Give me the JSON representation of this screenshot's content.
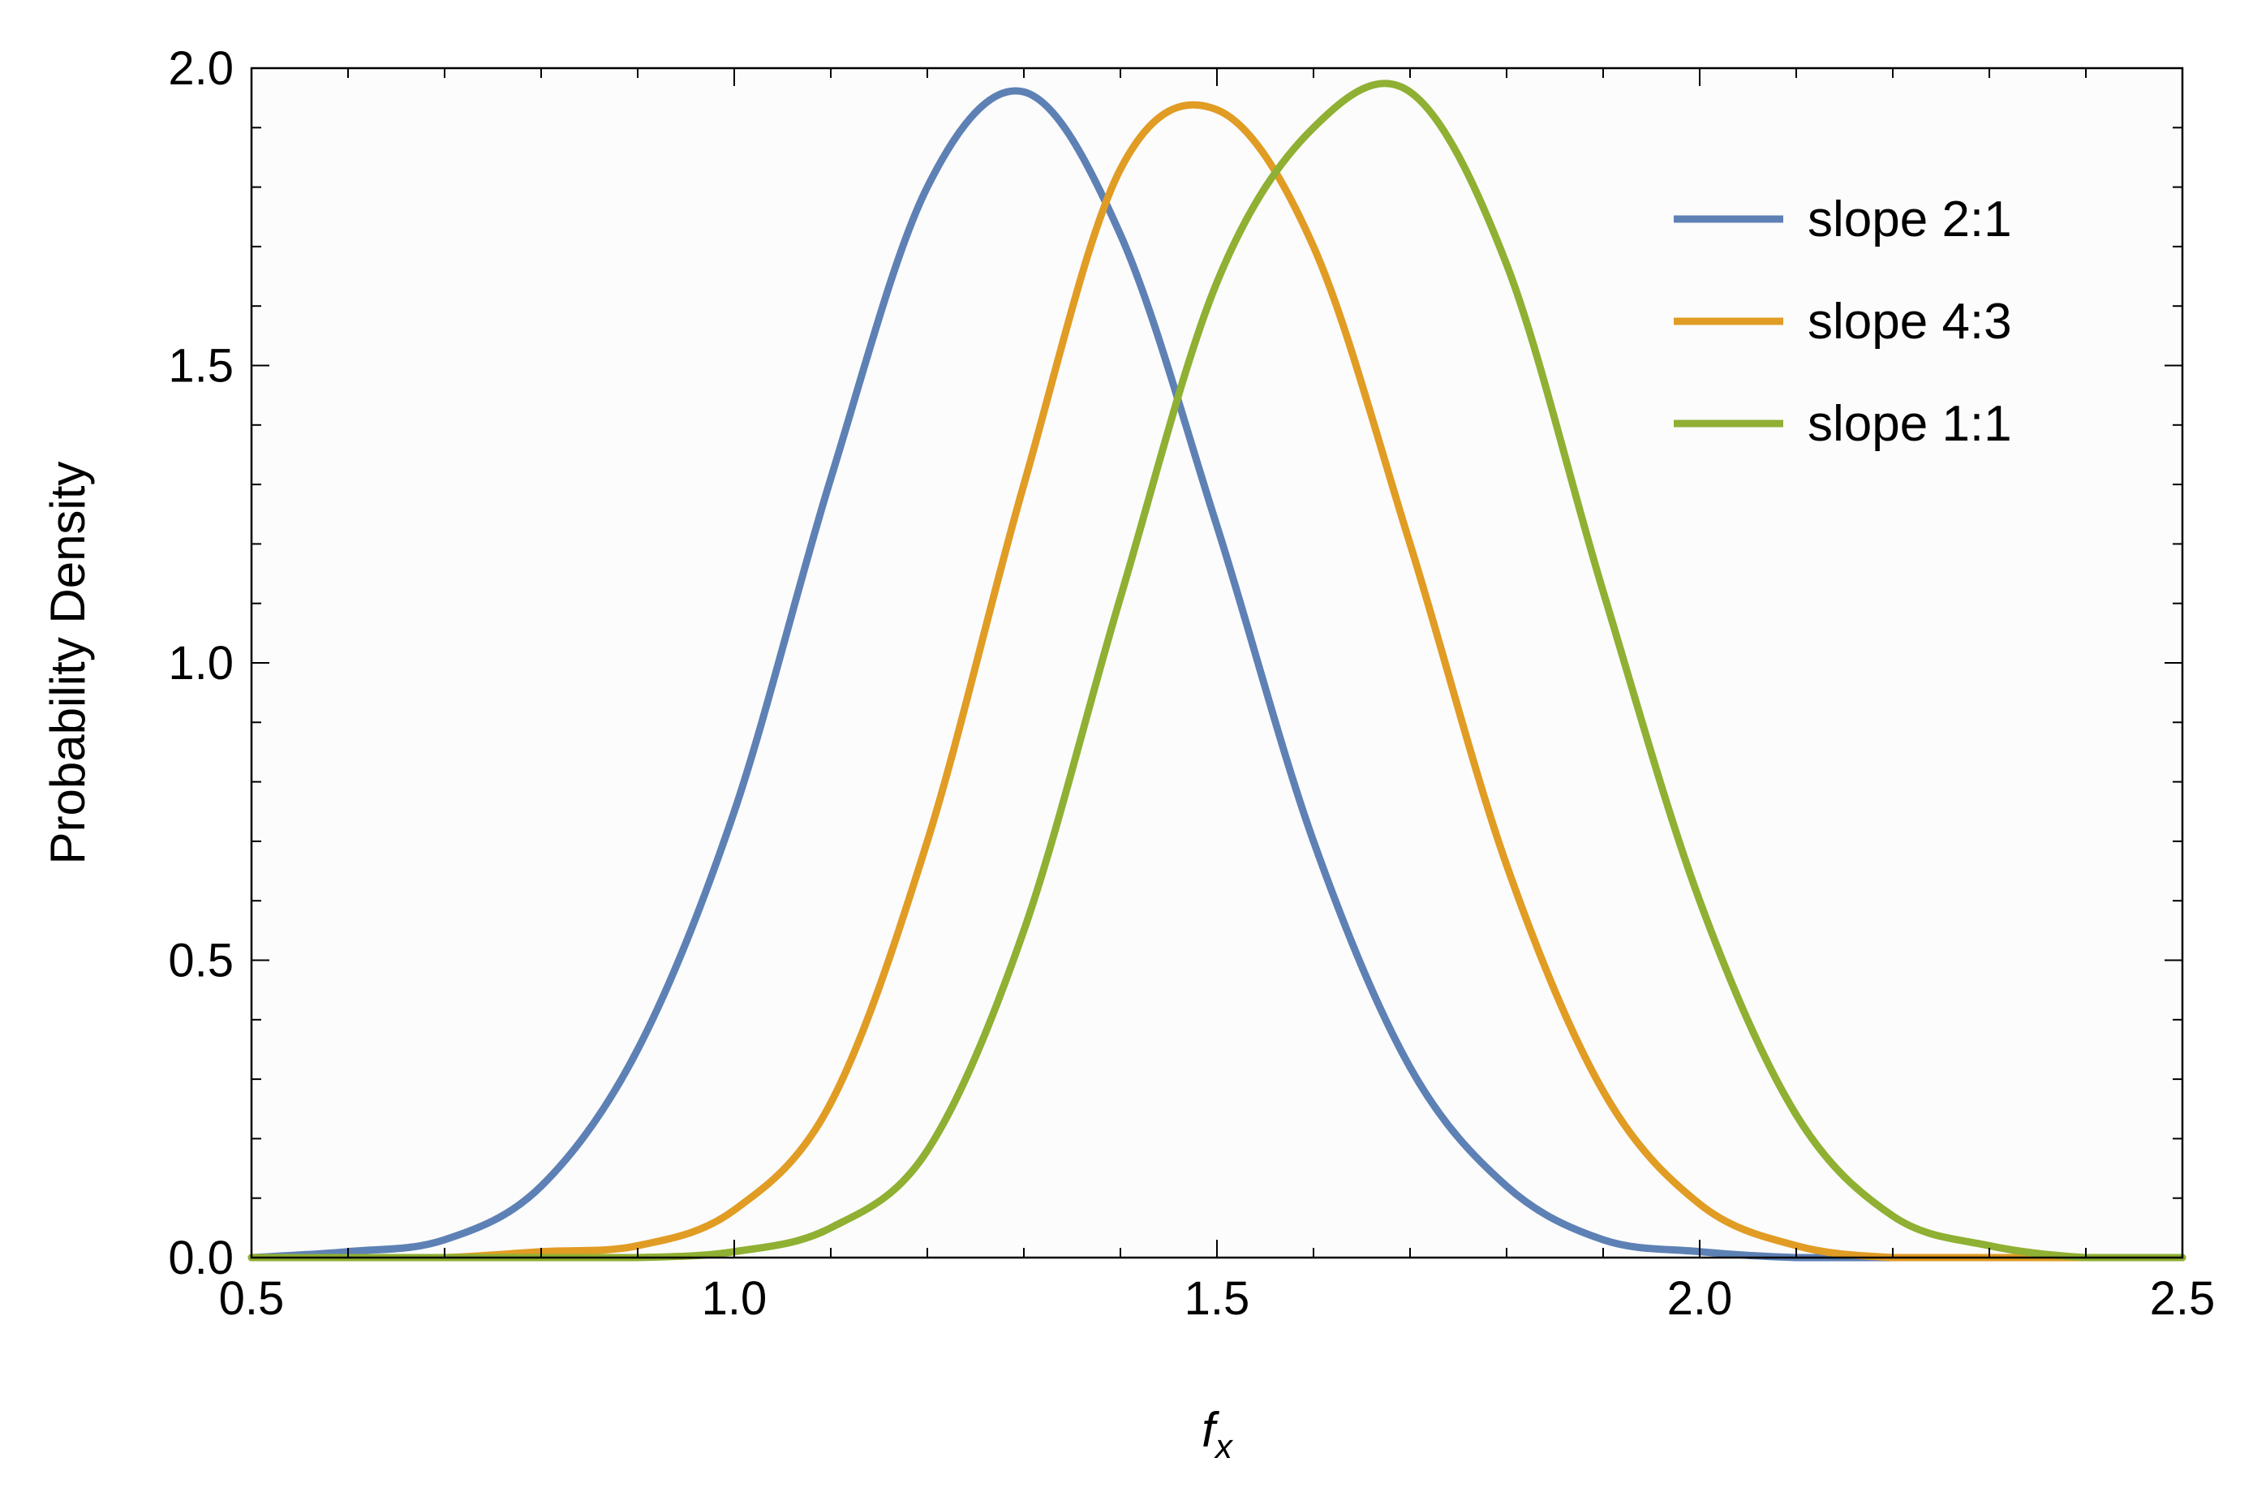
{
  "chart_data": {
    "type": "line",
    "xlabel": "f",
    "xlabel_subscript": "x",
    "ylabel": "Probability Density",
    "xlim": [
      0.5,
      2.5
    ],
    "ylim": [
      0.0,
      2.0
    ],
    "xticks": [
      "0.5",
      "1.0",
      "1.5",
      "2.0",
      "2.5"
    ],
    "yticks": [
      "0.0",
      "0.5",
      "1.0",
      "1.5",
      "2.0"
    ],
    "grid": false,
    "legend_position": "top-right",
    "series": [
      {
        "name": "slope 2:1",
        "color": "#5e81b5",
        "x": [
          0.5,
          0.6,
          0.7,
          0.8,
          0.9,
          1.0,
          1.1,
          1.2,
          1.3,
          1.4,
          1.5,
          1.6,
          1.7,
          1.8,
          1.9,
          2.0,
          2.1,
          2.2,
          2.3,
          2.4,
          2.5
        ],
        "y": [
          0.0,
          0.01,
          0.03,
          0.12,
          0.35,
          0.75,
          1.31,
          1.8,
          1.96,
          1.72,
          1.23,
          0.7,
          0.32,
          0.12,
          0.03,
          0.01,
          0.0,
          0.0,
          0.0,
          0.0,
          0.0
        ]
      },
      {
        "name": "slope 4:3",
        "color": "#e19c24",
        "x": [
          0.5,
          0.6,
          0.7,
          0.8,
          0.9,
          1.0,
          1.1,
          1.2,
          1.3,
          1.4,
          1.5,
          1.6,
          1.7,
          1.8,
          1.9,
          2.0,
          2.1,
          2.2,
          2.3,
          2.4,
          2.5
        ],
        "y": [
          0.0,
          0.0,
          0.0,
          0.01,
          0.02,
          0.08,
          0.26,
          0.7,
          1.3,
          1.83,
          1.93,
          1.7,
          1.2,
          0.66,
          0.28,
          0.09,
          0.02,
          0.0,
          0.0,
          0.0,
          0.0
        ]
      },
      {
        "name": "slope 1:1",
        "color": "#8fb032",
        "x": [
          0.5,
          0.6,
          0.7,
          0.8,
          0.9,
          1.0,
          1.1,
          1.2,
          1.3,
          1.4,
          1.5,
          1.6,
          1.7,
          1.8,
          1.9,
          2.0,
          2.1,
          2.2,
          2.3,
          2.4,
          2.5
        ],
        "y": [
          0.0,
          0.0,
          0.0,
          0.0,
          0.0,
          0.01,
          0.05,
          0.18,
          0.55,
          1.11,
          1.64,
          1.9,
          1.96,
          1.67,
          1.12,
          0.6,
          0.24,
          0.07,
          0.02,
          0.0,
          0.0
        ]
      }
    ]
  }
}
